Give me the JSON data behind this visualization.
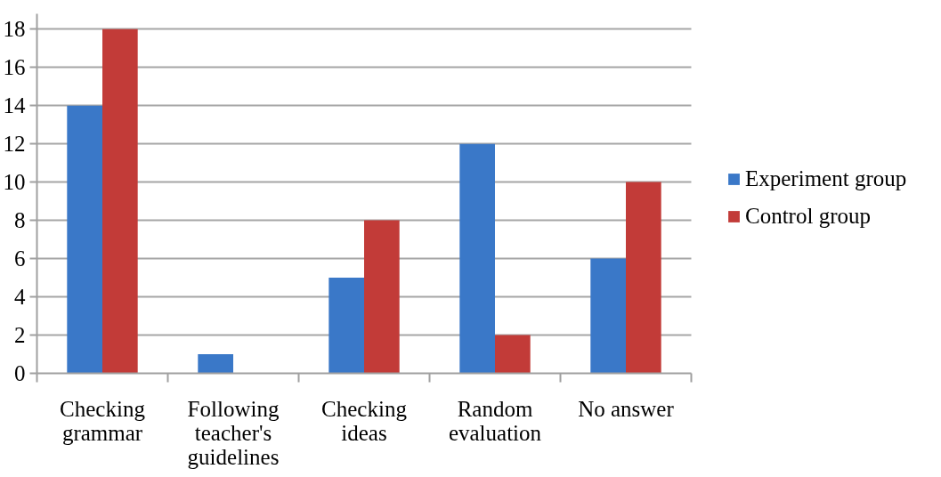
{
  "chart_data": {
    "type": "bar",
    "categories": [
      "Checking grammar",
      "Following teacher's guidelines",
      "Checking ideas",
      "Random evaluation",
      "No answer"
    ],
    "series": [
      {
        "name": "Experiment group",
        "color": "#3a78c8",
        "values": [
          14,
          1,
          5,
          12,
          6
        ]
      },
      {
        "name": "Control group",
        "color": "#c23b38",
        "values": [
          18,
          0,
          8,
          2,
          10
        ]
      }
    ],
    "ylim": [
      0,
      18.8
    ],
    "yticks": [
      0,
      2,
      4,
      6,
      8,
      10,
      12,
      14,
      16,
      18
    ],
    "grid": "y",
    "legend": "right"
  }
}
